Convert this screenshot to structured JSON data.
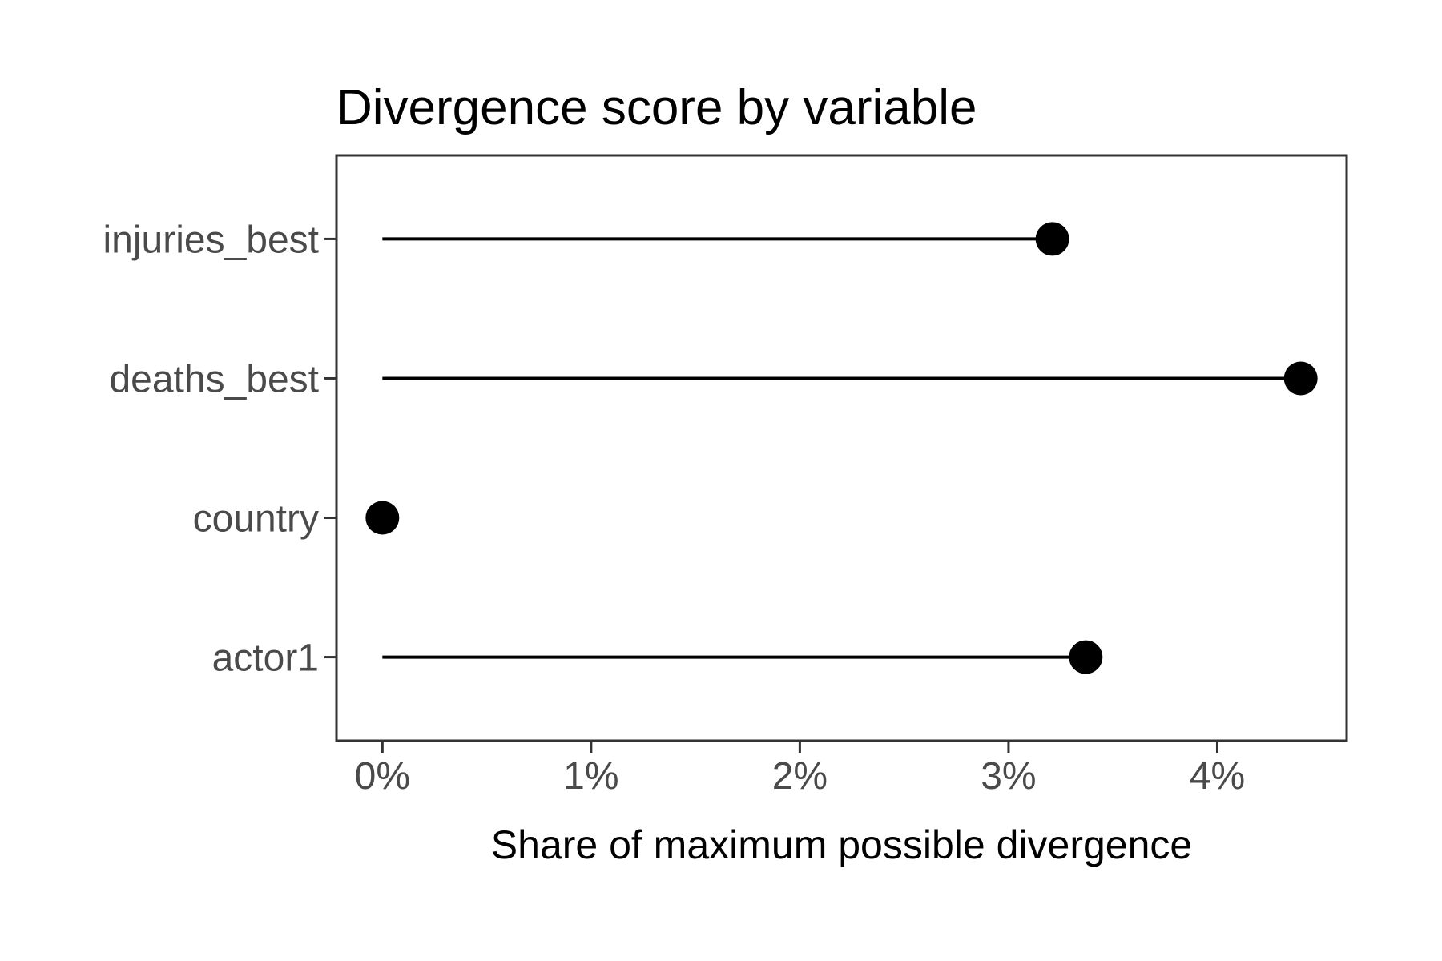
{
  "chart_data": {
    "type": "bar",
    "variant": "lollipop",
    "orientation": "horizontal",
    "title": "Divergence score by variable",
    "xlabel": "Share of maximum possible divergence",
    "ylabel": "",
    "categories": [
      "injuries_best",
      "deaths_best",
      "country",
      "actor1"
    ],
    "values": [
      3.21,
      4.4,
      0,
      3.37
    ],
    "unit": "%",
    "xlim": [
      -0.22,
      4.62
    ],
    "xticks": [
      0,
      1,
      2,
      3,
      4
    ],
    "xtick_labels": [
      "0%",
      "1%",
      "2%",
      "3%",
      "4%"
    ],
    "grid": false,
    "legend": false
  },
  "colors": {
    "point": "#000000",
    "stem": "#000000",
    "axis_text": "#4a4a4a",
    "axis_title": "#000000",
    "title_text": "#000000",
    "panel_border": "#333333",
    "tick_mark": "#333333",
    "panel_fill": "#ffffff",
    "background": "#ffffff"
  }
}
